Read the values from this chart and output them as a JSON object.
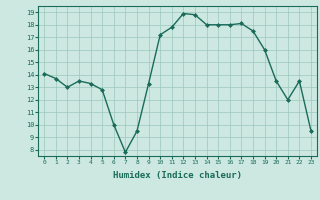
{
  "x": [
    0,
    1,
    2,
    3,
    4,
    5,
    6,
    7,
    8,
    9,
    10,
    11,
    12,
    13,
    14,
    15,
    16,
    17,
    18,
    19,
    20,
    21,
    22,
    23
  ],
  "y": [
    14.1,
    13.7,
    13.0,
    13.5,
    13.3,
    12.8,
    10.0,
    7.8,
    9.5,
    13.3,
    17.2,
    17.8,
    18.9,
    18.8,
    18.0,
    18.0,
    18.0,
    18.1,
    17.5,
    16.0,
    13.5,
    12.0,
    13.5,
    9.5
  ],
  "xlabel": "Humidex (Indice chaleur)",
  "ylim": [
    7.5,
    19.5
  ],
  "xlim": [
    -0.5,
    23.5
  ],
  "yticks": [
    8,
    9,
    10,
    11,
    12,
    13,
    14,
    15,
    16,
    17,
    18,
    19
  ],
  "xticks": [
    0,
    1,
    2,
    3,
    4,
    5,
    6,
    7,
    8,
    9,
    10,
    11,
    12,
    13,
    14,
    15,
    16,
    17,
    18,
    19,
    20,
    21,
    22,
    23
  ],
  "line_color": "#1a6b5a",
  "marker_color": "#1a6b5a",
  "bg_color": "#cce8e0",
  "grid_color": "#9ac8be",
  "spine_color": "#1a6b5a"
}
